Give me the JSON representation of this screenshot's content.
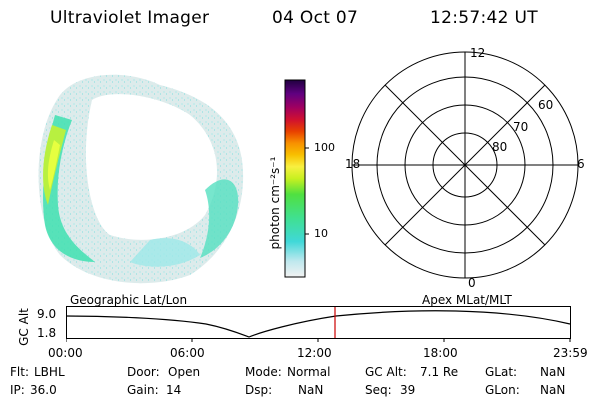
{
  "header": {
    "instrument": "Ultraviolet Imager",
    "date": "04 Oct 07",
    "time": "12:57:42 UT"
  },
  "colorbar": {
    "unit_label": "photon cm⁻²s⁻¹",
    "ticks": [
      "100",
      "10"
    ]
  },
  "polar_plot": {
    "mlt_labels": {
      "top": "12",
      "left": "18",
      "right": "6",
      "bottom": "0"
    },
    "lat_labels": [
      "60",
      "70",
      "80"
    ]
  },
  "timeline": {
    "left_label": "Geographic Lat/Lon",
    "right_label": "Apex  MLat/MLT",
    "axis_title": "GC Alt",
    "y_max": "9.0",
    "y_min": "1.8",
    "time_ticks": [
      "00:00",
      "06:00",
      "12:00",
      "18:00",
      "23:59"
    ],
    "current_marker_color": "#cc0000"
  },
  "status": {
    "row1": [
      {
        "label": "Flt:",
        "value": "LBHL"
      },
      {
        "label": "Door:",
        "value": "Open"
      },
      {
        "label": "Mode:",
        "value": "Normal"
      },
      {
        "label": "GC Alt:",
        "value": "7.1 Re"
      },
      {
        "label": "GLat:",
        "value": "NaN"
      }
    ],
    "row2": [
      {
        "label": "IP:",
        "value": "36.0"
      },
      {
        "label": "Gain:",
        "value": "14"
      },
      {
        "label": "Dsp:",
        "value": "NaN"
      },
      {
        "label": "Seq:",
        "value": "39"
      },
      {
        "label": "GLon:",
        "value": "NaN"
      }
    ]
  }
}
